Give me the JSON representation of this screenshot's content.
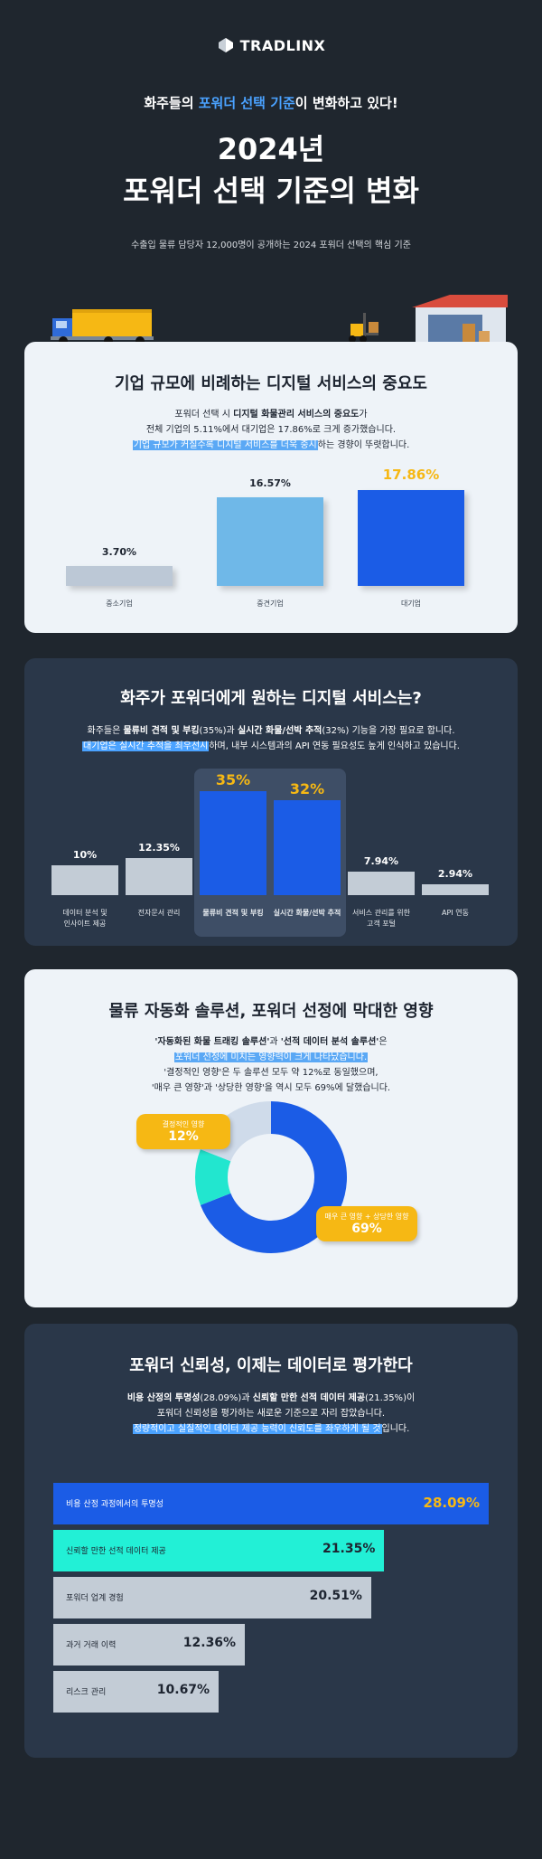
{
  "header": {
    "brand": "TRADLINX",
    "tagline_pre": "화주들의 ",
    "tagline_hl": "포워더 선택 기준",
    "tagline_post": "이 변화하고 있다!",
    "title_line1": "2024년",
    "title_line2": "포워더 선택 기준의 변화",
    "subtitle": "수출입 물류 담당자 12,000명이 공개하는 2024 포워더 선택의 핵심 기준"
  },
  "card1": {
    "title": "기업 규모에 비례하는 디지털 서비스의 중요도",
    "desc_l1_pre": "포워더 선택 시 ",
    "desc_l1_b": "디지털 화물관리 서비스의 중요도",
    "desc_l1_post": "가",
    "desc_l2": "전체 기업의 5.11%에서 대기업은 17.86%로 크게 증가했습니다.",
    "desc_l3_mark": "기업 규모가 커질수록 디지털 서비스를 더욱 중시",
    "desc_l3_post": "하는 경향이 뚜렷합니다."
  },
  "card2": {
    "title": "화주가 포워더에게 원하는 디지털 서비스는?",
    "desc_l1_pre": "화주들은 ",
    "desc_l1_b1": "물류비 견적 및 부킹",
    "desc_l1_mid": "(35%)과 ",
    "desc_l1_b2": "실시간 화물/선박 추적",
    "desc_l1_post": "(32%) 기능을 가장 필요로 합니다.",
    "desc_l2_mark": "대기업은 실시간 추적을 최우선시",
    "desc_l2_post": "하며, 내부 시스템과의 API 연동 필요성도 높게 인식하고 있습니다."
  },
  "card3": {
    "title": "물류 자동화 솔루션, 포워더 선정에 막대한 영향",
    "desc_l1_b1": "'자동화된 화물 트래킹 솔루션'",
    "desc_l1_mid": "과 ",
    "desc_l1_b2": "'선적 데이터 분석 솔루션'",
    "desc_l1_post": "은",
    "desc_l2_mark": "포워더 선정에 미치는 영향력이 크게 나타났습니다.",
    "desc_l3": "'결정적인 영향'은 두 솔루션 모두 약 12%로 동일했으며,",
    "desc_l4": "'매우 큰 영향'과 '상당한 영향'을 역시 모두 69%에 달했습니다."
  },
  "card4": {
    "title": "포워더 신뢰성, 이제는 데이터로 평가한다",
    "desc_l1_b1": "비용 산정의 투명성",
    "desc_l1_mid": "(28.09%)과 ",
    "desc_l1_b2": "신뢰할 만한 선적 데이터 제공",
    "desc_l1_post": "(21.35%)이",
    "desc_l2": "포워더 신뢰성을 평가하는 새로운 기준으로 자리 잡았습니다.",
    "desc_l3_mark": "정량적이고 실질적인 데이터 제공 능력이 신뢰도를 좌우하게 될 것",
    "desc_l3_post": "입니다."
  },
  "chart_data": [
    {
      "type": "bar",
      "title": "기업 규모에 비례하는 디지털 서비스의 중요도",
      "categories": [
        "중소기업",
        "중견기업",
        "대기업"
      ],
      "values": [
        3.7,
        16.57,
        17.86
      ],
      "value_labels": [
        "3.70%",
        "16.57%",
        "17.86%"
      ],
      "colors": [
        "#bcc8d6",
        "#6fb8e8",
        "#1b5ce6"
      ],
      "ylim": [
        0,
        17.86
      ]
    },
    {
      "type": "bar",
      "title": "화주가 포워더에게 원하는 디지털 서비스는?",
      "categories": [
        [
          "데이터 분석 및",
          "인사이트 제공"
        ],
        [
          "전자문서 관리"
        ],
        [
          "물류비 견적 및 부킹"
        ],
        [
          "실시간 화물/선박 추적"
        ],
        [
          "서비스 관리를 위한",
          "고객 포털"
        ],
        [
          "API 연동"
        ]
      ],
      "values": [
        10,
        12.35,
        35,
        32,
        7.94,
        2.94
      ],
      "value_labels": [
        "10%",
        "12.35%",
        "35%",
        "32%",
        "7.94%",
        "2.94%"
      ],
      "highlighted": [
        false,
        false,
        true,
        true,
        false,
        false
      ],
      "colors": {
        "normal": "#c3ccd6",
        "highlight": "#1b5ce6",
        "highlight_text": "#f6b814"
      }
    },
    {
      "type": "pie",
      "title": "물류 자동화 솔루션, 포워더 선정에 막대한 영향",
      "slices": [
        {
          "label": "매우 큰 영향 + 상당한 영향",
          "value": 69,
          "display": "69%",
          "color": "#1b5ce6"
        },
        {
          "label": "결정적인 영향",
          "value": 12,
          "display": "12%",
          "color": "#22e6cf"
        },
        {
          "label": "",
          "value": 19,
          "color": "#cfdbea"
        }
      ]
    },
    {
      "type": "bar",
      "orientation": "horizontal",
      "title": "포워더 신뢰성, 이제는 데이터로 평가한다",
      "categories": [
        "비용 산정 과정에서의 투명성",
        "신뢰할 만한 선적 데이터 제공",
        "포워더 업계 경험",
        "과거 거래 이력",
        "리스크 관리"
      ],
      "values": [
        28.09,
        21.35,
        20.51,
        12.36,
        10.67
      ],
      "value_labels": [
        "28.09%",
        "21.35%",
        "20.51%",
        "12.36%",
        "10.67%"
      ],
      "colors": [
        "#1b5ce6",
        "#22f0d6",
        "#c3ccd6",
        "#c3ccd6",
        "#c3ccd6"
      ],
      "label_colors": [
        "#ffffff",
        "#1d2430",
        "#1d2430",
        "#1d2430",
        "#1d2430"
      ],
      "value_colors": [
        "#f6b814",
        "#1d2430",
        "#1d2430",
        "#1d2430",
        "#1d2430"
      ]
    }
  ]
}
